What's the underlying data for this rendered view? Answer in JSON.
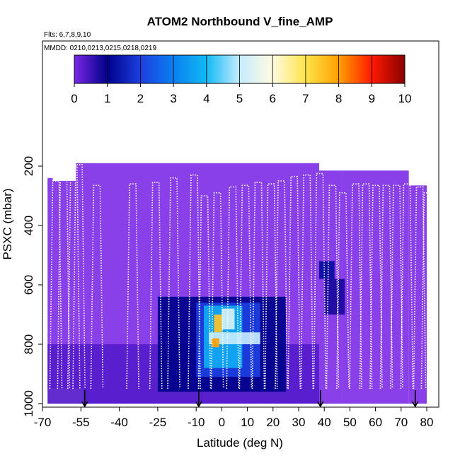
{
  "chart_data": {
    "type": "heatmap",
    "title": "ATOM2 Northbound V_fine_AMP",
    "flights_label": "Flts: 6,7,8,9,10",
    "dates_label": "MMDD: 0210,0213,0215,0218,0219",
    "xlabel": "Latitude (deg N)",
    "ylabel": "PSXC (mbar)",
    "xlim": [
      -70,
      83
    ],
    "ylim": [
      1010,
      0
    ],
    "y_inverted": true,
    "xticks": [
      "-70",
      "-55",
      "-40",
      "-25",
      "-10",
      "0",
      "10",
      "20",
      "30",
      "40",
      "50",
      "60",
      "70",
      "80"
    ],
    "xtick_values": [
      -70,
      -55,
      -40,
      -25,
      -10,
      0,
      10,
      20,
      30,
      40,
      50,
      60,
      70,
      80
    ],
    "yticks": [
      "200",
      "400",
      "600",
      "800",
      "1000"
    ],
    "ytick_values": [
      200,
      400,
      600,
      800,
      1000
    ],
    "colorbar": {
      "ticks": [
        "0",
        "1",
        "2",
        "3",
        "4",
        "5",
        "6",
        "7",
        "8",
        "9",
        "10"
      ],
      "range": [
        0,
        10
      ],
      "colors": [
        "#7a27e6",
        "#00008b",
        "#1c3fe0",
        "#0a7ff0",
        "#12b9f5",
        "#c6ecff",
        "#fffbe0",
        "#ffe44a",
        "#ffa000",
        "#ff1a00",
        "#8a0000"
      ]
    },
    "background_color": "#8a40e8",
    "cells": [
      {
        "lat0": -68,
        "lat1": 38,
        "p0": 800,
        "p1": 1000,
        "value": 0.3
      },
      {
        "lat0": -25,
        "lat1": 25,
        "p0": 640,
        "p1": 960,
        "value": 1.0
      },
      {
        "lat0": -10,
        "lat1": 15,
        "p0": 660,
        "p1": 910,
        "value": 2.0
      },
      {
        "lat0": -7,
        "lat1": 8,
        "p0": 670,
        "p1": 880,
        "value": 3.8
      },
      {
        "lat0": -5,
        "lat1": 15,
        "p0": 760,
        "p1": 800,
        "value": 5.0
      },
      {
        "lat0": -3,
        "lat1": 0,
        "p0": 700,
        "p1": 760,
        "value": 7.5
      },
      {
        "lat0": -4,
        "lat1": -1,
        "p0": 780,
        "p1": 810,
        "value": 8.0
      },
      {
        "lat0": 0,
        "lat1": 5,
        "p0": 680,
        "p1": 750,
        "value": 5.3
      },
      {
        "lat0": 38,
        "lat1": 44,
        "p0": 520,
        "p1": 580,
        "value": 1.2
      },
      {
        "lat0": 40,
        "lat1": 48,
        "p0": 580,
        "p1": 700,
        "value": 0.8
      }
    ],
    "flight_track_arrows_lat": [
      -53.5,
      -9,
      38.5,
      75.5
    ],
    "domain_note": ""
  }
}
